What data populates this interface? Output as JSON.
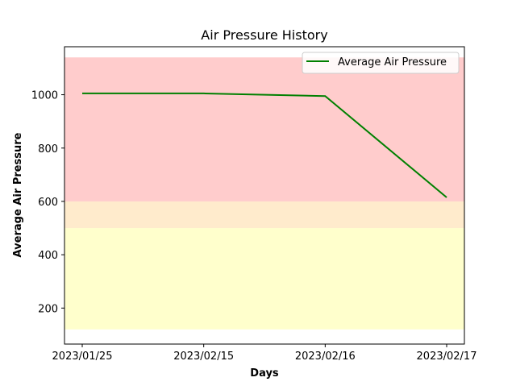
{
  "chart_data": {
    "type": "line",
    "title": "Air Pressure History",
    "xlabel": "Days",
    "ylabel": "Average Air Pressure",
    "categories": [
      "2023/01/25",
      "2023/02/15",
      "2023/02/16",
      "2023/02/17"
    ],
    "series": [
      {
        "name": "Average Air Pressure",
        "color": "#008000",
        "values": [
          1005,
          1005,
          995,
          615
        ]
      }
    ],
    "ylim": [
      65,
      1180
    ],
    "yticks": [
      200,
      400,
      600,
      800,
      1000
    ],
    "bands": [
      {
        "from": 120,
        "to": 500,
        "color": "#ffffcc"
      },
      {
        "from": 500,
        "to": 600,
        "color": "#ffebcc"
      },
      {
        "from": 600,
        "to": 1140,
        "color": "#ffcccc"
      }
    ],
    "legend": "top-right",
    "grid": false
  }
}
